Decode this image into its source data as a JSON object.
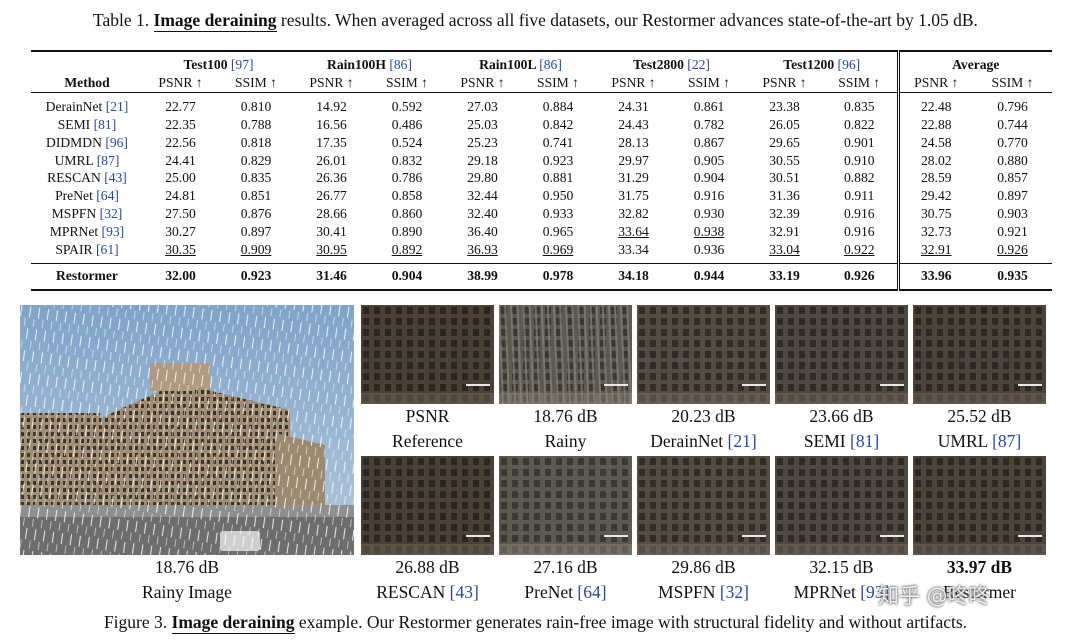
{
  "table": {
    "caption_prefix": "Table 1.",
    "caption_bold": "Image deraining",
    "caption_rest": "results. When averaged across all five datasets, our Restormer advances state-of-the-art by 1.05 dB.",
    "method_header": "Method",
    "datasets": [
      {
        "name": "Test100",
        "cite": "[97]"
      },
      {
        "name": "Rain100H",
        "cite": "[86]"
      },
      {
        "name": "Rain100L",
        "cite": "[86]"
      },
      {
        "name": "Test2800",
        "cite": "[22]"
      },
      {
        "name": "Test1200",
        "cite": "[96]"
      },
      {
        "name": "Average",
        "cite": ""
      }
    ],
    "psnr_label": "PSNR ↑",
    "ssim_label": "SSIM ↑",
    "rows": [
      {
        "name": "DerainNet",
        "cite": "[21]",
        "vals": [
          "22.77",
          "0.810",
          "14.92",
          "0.592",
          "27.03",
          "0.884",
          "24.31",
          "0.861",
          "23.38",
          "0.835",
          "22.48",
          "0.796"
        ],
        "ul": []
      },
      {
        "name": "SEMI",
        "cite": "[81]",
        "vals": [
          "22.35",
          "0.788",
          "16.56",
          "0.486",
          "25.03",
          "0.842",
          "24.43",
          "0.782",
          "26.05",
          "0.822",
          "22.88",
          "0.744"
        ],
        "ul": []
      },
      {
        "name": "DIDMDN",
        "cite": "[96]",
        "vals": [
          "22.56",
          "0.818",
          "17.35",
          "0.524",
          "25.23",
          "0.741",
          "28.13",
          "0.867",
          "29.65",
          "0.901",
          "24.58",
          "0.770"
        ],
        "ul": []
      },
      {
        "name": "UMRL",
        "cite": "[87]",
        "vals": [
          "24.41",
          "0.829",
          "26.01",
          "0.832",
          "29.18",
          "0.923",
          "29.97",
          "0.905",
          "30.55",
          "0.910",
          "28.02",
          "0.880"
        ],
        "ul": []
      },
      {
        "name": "RESCAN",
        "cite": "[43]",
        "vals": [
          "25.00",
          "0.835",
          "26.36",
          "0.786",
          "29.80",
          "0.881",
          "31.29",
          "0.904",
          "30.51",
          "0.882",
          "28.59",
          "0.857"
        ],
        "ul": []
      },
      {
        "name": "PreNet",
        "cite": "[64]",
        "vals": [
          "24.81",
          "0.851",
          "26.77",
          "0.858",
          "32.44",
          "0.950",
          "31.75",
          "0.916",
          "31.36",
          "0.911",
          "29.42",
          "0.897"
        ],
        "ul": []
      },
      {
        "name": "MSPFN",
        "cite": "[32]",
        "vals": [
          "27.50",
          "0.876",
          "28.66",
          "0.860",
          "32.40",
          "0.933",
          "32.82",
          "0.930",
          "32.39",
          "0.916",
          "30.75",
          "0.903"
        ],
        "ul": []
      },
      {
        "name": "MPRNet",
        "cite": "[93]",
        "vals": [
          "30.27",
          "0.897",
          "30.41",
          "0.890",
          "36.40",
          "0.965",
          "33.64",
          "0.938",
          "32.91",
          "0.916",
          "32.73",
          "0.921"
        ],
        "ul": [
          6,
          7
        ]
      },
      {
        "name": "SPAIR",
        "cite": "[61]",
        "vals": [
          "30.35",
          "0.909",
          "30.95",
          "0.892",
          "36.93",
          "0.969",
          "33.34",
          "0.936",
          "33.04",
          "0.922",
          "32.91",
          "0.926"
        ],
        "ul": [
          0,
          1,
          2,
          3,
          4,
          5,
          8,
          9,
          10,
          11
        ]
      }
    ],
    "ours": {
      "name": "Restormer",
      "vals": [
        "32.00",
        "0.923",
        "31.46",
        "0.904",
        "38.99",
        "0.978",
        "34.18",
        "0.944",
        "33.19",
        "0.926",
        "33.96",
        "0.935"
      ]
    }
  },
  "figure": {
    "main_psnr": "18.76 dB",
    "main_label": "Rainy Image",
    "crops_top": [
      {
        "psnr": "PSNR",
        "label": "Reference",
        "cite": ""
      },
      {
        "psnr": "18.76 dB",
        "label": "Rainy",
        "cite": ""
      },
      {
        "psnr": "20.23 dB",
        "label": "DerainNet",
        "cite": "[21]"
      },
      {
        "psnr": "23.66 dB",
        "label": "SEMI",
        "cite": "[81]"
      },
      {
        "psnr": "25.52 dB",
        "label": "UMRL",
        "cite": "[87]"
      }
    ],
    "crops_bottom": [
      {
        "psnr": "26.88 dB",
        "label": "RESCAN",
        "cite": "[43]"
      },
      {
        "psnr": "27.16 dB",
        "label": "PreNet",
        "cite": "[64]"
      },
      {
        "psnr": "29.86 dB",
        "label": "MSPFN",
        "cite": "[32]"
      },
      {
        "psnr": "32.15 dB",
        "label": "MPRNet",
        "cite": "[93]"
      },
      {
        "psnr": "33.97 dB",
        "label": "Restormer",
        "cite": ""
      }
    ],
    "caption_prefix": "Figure 3.",
    "caption_bold": "Image deraining",
    "caption_rest": "example. Our Restormer generates rain-free image with structural fidelity and without artifacts."
  },
  "watermark": "知乎 @咚咚",
  "colors": {
    "cite": "#2346b0"
  }
}
